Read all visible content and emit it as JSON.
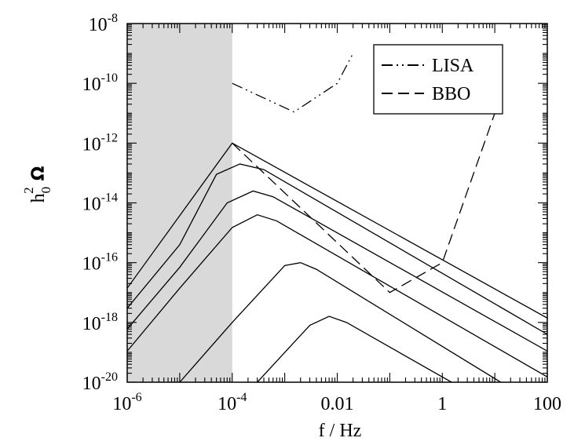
{
  "chart_data": {
    "type": "line",
    "xscale": "log",
    "yscale": "log",
    "xlim": [
      1e-06,
      100
    ],
    "ylim": [
      1e-20,
      1e-08
    ],
    "xlabel": "f / Hz",
    "ylabel": "h",
    "ylabel_sub": "0",
    "ylabel_sup": "2",
    "ylabel_omega": "Ω",
    "shaded_region": {
      "x": [
        1e-06,
        0.0001
      ],
      "color": "#d9d9d9"
    },
    "x_ticks": [
      {
        "value": 1e-06,
        "base": "10",
        "exp": "-6"
      },
      {
        "value": 0.0001,
        "base": "10",
        "exp": "-4"
      },
      {
        "value": 0.01,
        "label": "0.01"
      },
      {
        "value": 1,
        "label": "1"
      },
      {
        "value": 100,
        "label": "100"
      }
    ],
    "y_ticks": [
      {
        "value": 1e-08,
        "base": "10",
        "exp": "-8"
      },
      {
        "value": 1e-10,
        "base": "10",
        "exp": "-10"
      },
      {
        "value": 1e-12,
        "base": "10",
        "exp": "-12"
      },
      {
        "value": 1e-14,
        "base": "10",
        "exp": "-14"
      },
      {
        "value": 1e-16,
        "base": "10",
        "exp": "-16"
      },
      {
        "value": 1e-18,
        "base": "10",
        "exp": "-18"
      },
      {
        "value": 1e-20,
        "base": "10",
        "exp": "-20"
      }
    ],
    "legend": {
      "position": "top-right",
      "entries": [
        {
          "label": "LISA",
          "dash": "dash-dot-dot"
        },
        {
          "label": "BBO",
          "dash": "dashed"
        }
      ]
    },
    "series": [
      {
        "name": "LISA",
        "style": "dash-dot-dot",
        "x": [
          0.0001,
          0.0015,
          0.01,
          0.02
        ],
        "y": [
          1e-10,
          1.1e-11,
          1e-10,
          1e-09
        ]
      },
      {
        "name": "BBO",
        "style": "dashed",
        "x": [
          0.0001,
          0.1,
          1,
          10
        ],
        "y": [
          1e-12,
          1e-17,
          1e-16,
          1e-11
        ]
      },
      {
        "style": "solid",
        "x": [
          1e-06,
          0.0001,
          100
        ],
        "y": [
          1.4e-17,
          1e-12,
          1.4e-18
        ]
      },
      {
        "style": "solid",
        "x": [
          1e-06,
          1e-05,
          5e-05,
          0.00014,
          0.0004,
          100
        ],
        "y": [
          3e-18,
          4e-16,
          9e-14,
          2e-13,
          1.3e-13,
          4e-19
        ]
      },
      {
        "style": "solid",
        "x": [
          1e-06,
          1e-05,
          8e-05,
          0.00025,
          0.0006,
          100
        ],
        "y": [
          6e-19,
          7e-17,
          1e-14,
          2.5e-14,
          1.6e-14,
          1.1e-19
        ]
      },
      {
        "style": "solid",
        "x": [
          1e-06,
          1e-05,
          0.0001,
          0.0003,
          0.0007,
          100
        ],
        "y": [
          1.1e-19,
          1.4e-17,
          1.5e-15,
          4e-15,
          2.5e-15,
          1.5e-20
        ]
      },
      {
        "style": "solid",
        "x": [
          1e-05,
          0.0001,
          0.001,
          0.002,
          0.004,
          13
        ],
        "y": [
          1e-20,
          1e-18,
          8e-17,
          1e-16,
          6e-17,
          1e-20
        ]
      },
      {
        "style": "solid",
        "x": [
          0.0003,
          0.003,
          0.007,
          0.015,
          1.5
        ],
        "y": [
          1e-20,
          8e-19,
          1.6e-18,
          1e-18,
          1e-20
        ]
      }
    ]
  }
}
